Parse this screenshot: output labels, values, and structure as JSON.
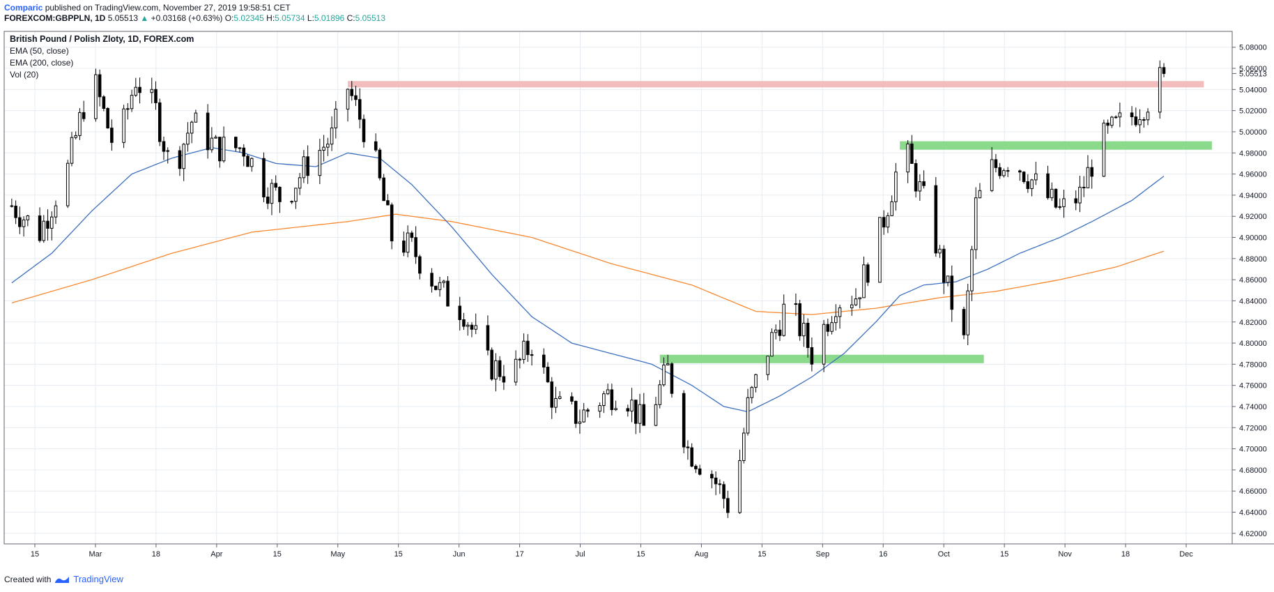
{
  "header": {
    "author": "Comparic",
    "published_text": "published on TradingView.com, November 27, 2019 19:58:51 CET",
    "symbol": "FOREXCOM:GBPPLN, 1D",
    "last": "5.05513",
    "arrow": "▲",
    "change": "+0.03168 (+0.63%)",
    "o_label": "O:",
    "o_value": "5.02345",
    "h_label": "H:",
    "h_value": "5.05734",
    "l_label": "L:",
    "l_value": "5.01896",
    "c_label": "C:",
    "c_value": "5.05513"
  },
  "legend": {
    "title": "British Pound / Polish Zloty, 1D, FOREX.com",
    "ema50": "EMA (50, close)",
    "ema200": "EMA (200, close)",
    "vol": "Vol (20)"
  },
  "footer": {
    "created_with": "Created with",
    "brand": "TradingView"
  },
  "colors": {
    "candle": "#000000",
    "ema50": "#3c6fbf",
    "ema200": "#f7882f",
    "resistance_zone": "#f2b6b6",
    "support_zone": "#7ed67e",
    "grid": "#e6ecf1",
    "border": "#5d606b"
  },
  "chart_data": {
    "type": "candlestick",
    "ylim": [
      4.61,
      5.095
    ],
    "y_ticks": [
      "5.08000",
      "5.06000",
      "5.04000",
      "5.02000",
      "5.00000",
      "4.98000",
      "4.96000",
      "4.94000",
      "4.92000",
      "4.90000",
      "4.88000",
      "4.86000",
      "4.84000",
      "4.82000",
      "4.80000",
      "4.78000",
      "4.76000",
      "4.74000",
      "4.72000",
      "4.70000",
      "4.68000",
      "4.66000",
      "4.64000",
      "4.62000"
    ],
    "x_ticks": [
      "15",
      "Mar",
      "18",
      "Apr",
      "15",
      "May",
      "15",
      "Jun",
      "17",
      "Jul",
      "15",
      "Aug",
      "15",
      "Sep",
      "16",
      "Oct",
      "15",
      "Nov",
      "18",
      "Dec"
    ],
    "last_price_label": "5.05513",
    "last_price": 5.05513,
    "zones": [
      {
        "color": "resistance",
        "from_index": 84,
        "to_index": 298,
        "low": 5.042,
        "high": 5.048
      },
      {
        "color": "support",
        "from_index": 222,
        "to_index": 300,
        "low": 4.983,
        "high": 4.991
      },
      {
        "color": "support",
        "from_index": 162,
        "to_index": 243,
        "low": 4.781,
        "high": 4.789
      }
    ],
    "anchors": [
      {
        "i": 0,
        "p": 4.93
      },
      {
        "i": 7,
        "p": 4.905
      },
      {
        "i": 14,
        "p": 4.965
      },
      {
        "i": 20,
        "p": 5.055
      },
      {
        "i": 26,
        "p": 4.98
      },
      {
        "i": 31,
        "p": 5.05
      },
      {
        "i": 36,
        "p": 5.02
      },
      {
        "i": 40,
        "p": 4.96
      },
      {
        "i": 45,
        "p": 5.01
      },
      {
        "i": 51,
        "p": 4.985
      },
      {
        "i": 58,
        "p": 4.985
      },
      {
        "i": 63,
        "p": 4.95
      },
      {
        "i": 68,
        "p": 4.935
      },
      {
        "i": 74,
        "p": 4.97
      },
      {
        "i": 80,
        "p": 4.995
      },
      {
        "i": 84,
        "p": 5.042
      },
      {
        "i": 90,
        "p": 4.985
      },
      {
        "i": 95,
        "p": 4.9
      },
      {
        "i": 100,
        "p": 4.89
      },
      {
        "i": 107,
        "p": 4.85
      },
      {
        "i": 113,
        "p": 4.83
      },
      {
        "i": 119,
        "p": 4.78
      },
      {
        "i": 125,
        "p": 4.77
      },
      {
        "i": 130,
        "p": 4.8
      },
      {
        "i": 136,
        "p": 4.74
      },
      {
        "i": 142,
        "p": 4.73
      },
      {
        "i": 148,
        "p": 4.75
      },
      {
        "i": 153,
        "p": 4.755
      },
      {
        "i": 158,
        "p": 4.72
      },
      {
        "i": 164,
        "p": 4.775
      },
      {
        "i": 169,
        "p": 4.7
      },
      {
        "i": 175,
        "p": 4.675
      },
      {
        "i": 180,
        "p": 4.64
      },
      {
        "i": 184,
        "p": 4.74
      },
      {
        "i": 188,
        "p": 4.785
      },
      {
        "i": 194,
        "p": 4.84
      },
      {
        "i": 200,
        "p": 4.79
      },
      {
        "i": 206,
        "p": 4.84
      },
      {
        "i": 211,
        "p": 4.845
      },
      {
        "i": 216,
        "p": 4.89
      },
      {
        "i": 221,
        "p": 4.96
      },
      {
        "i": 224,
        "p": 4.975
      },
      {
        "i": 229,
        "p": 4.925
      },
      {
        "i": 234,
        "p": 4.85
      },
      {
        "i": 238,
        "p": 4.8
      },
      {
        "i": 241,
        "p": 4.93
      },
      {
        "i": 245,
        "p": 4.965
      },
      {
        "i": 250,
        "p": 4.975
      },
      {
        "i": 256,
        "p": 4.95
      },
      {
        "i": 262,
        "p": 4.925
      },
      {
        "i": 267,
        "p": 4.94
      },
      {
        "i": 272,
        "p": 4.99
      },
      {
        "i": 276,
        "p": 5.005
      },
      {
        "i": 280,
        "p": 5.015
      },
      {
        "i": 284,
        "p": 5.03
      },
      {
        "i": 288,
        "p": 5.055
      }
    ],
    "ema50": [
      {
        "i": 0,
        "p": 4.857
      },
      {
        "i": 10,
        "p": 4.885
      },
      {
        "i": 20,
        "p": 4.925
      },
      {
        "i": 30,
        "p": 4.96
      },
      {
        "i": 40,
        "p": 4.975
      },
      {
        "i": 50,
        "p": 4.985
      },
      {
        "i": 58,
        "p": 4.98
      },
      {
        "i": 66,
        "p": 4.97
      },
      {
        "i": 76,
        "p": 4.967
      },
      {
        "i": 84,
        "p": 4.98
      },
      {
        "i": 92,
        "p": 4.975
      },
      {
        "i": 100,
        "p": 4.95
      },
      {
        "i": 110,
        "p": 4.91
      },
      {
        "i": 120,
        "p": 4.865
      },
      {
        "i": 130,
        "p": 4.825
      },
      {
        "i": 140,
        "p": 4.8
      },
      {
        "i": 150,
        "p": 4.79
      },
      {
        "i": 160,
        "p": 4.78
      },
      {
        "i": 170,
        "p": 4.76
      },
      {
        "i": 178,
        "p": 4.74
      },
      {
        "i": 184,
        "p": 4.735
      },
      {
        "i": 192,
        "p": 4.75
      },
      {
        "i": 200,
        "p": 4.768
      },
      {
        "i": 208,
        "p": 4.79
      },
      {
        "i": 216,
        "p": 4.82
      },
      {
        "i": 222,
        "p": 4.845
      },
      {
        "i": 228,
        "p": 4.855
      },
      {
        "i": 236,
        "p": 4.858
      },
      {
        "i": 244,
        "p": 4.87
      },
      {
        "i": 252,
        "p": 4.885
      },
      {
        "i": 262,
        "p": 4.9
      },
      {
        "i": 270,
        "p": 4.915
      },
      {
        "i": 280,
        "p": 4.935
      },
      {
        "i": 288,
        "p": 4.958
      }
    ],
    "ema200": [
      {
        "i": 0,
        "p": 4.838
      },
      {
        "i": 20,
        "p": 4.86
      },
      {
        "i": 40,
        "p": 4.885
      },
      {
        "i": 60,
        "p": 4.905
      },
      {
        "i": 84,
        "p": 4.915
      },
      {
        "i": 96,
        "p": 4.922
      },
      {
        "i": 110,
        "p": 4.915
      },
      {
        "i": 130,
        "p": 4.9
      },
      {
        "i": 150,
        "p": 4.875
      },
      {
        "i": 170,
        "p": 4.855
      },
      {
        "i": 186,
        "p": 4.83
      },
      {
        "i": 200,
        "p": 4.827
      },
      {
        "i": 216,
        "p": 4.833
      },
      {
        "i": 232,
        "p": 4.843
      },
      {
        "i": 246,
        "p": 4.849
      },
      {
        "i": 262,
        "p": 4.86
      },
      {
        "i": 276,
        "p": 4.872
      },
      {
        "i": 288,
        "p": 4.887
      }
    ]
  }
}
